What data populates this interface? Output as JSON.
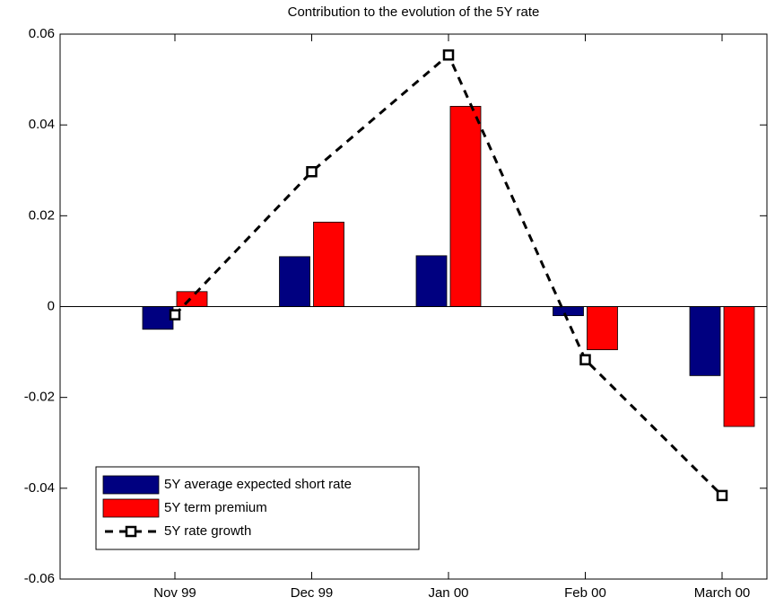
{
  "chart_data": {
    "type": "bar",
    "title": "Contribution to the evolution of the 5Y rate",
    "categories": [
      "Nov 99",
      "Dec 99",
      "Jan 00",
      "Feb 00",
      "March 00"
    ],
    "series": [
      {
        "name": "5Y average expected short rate",
        "color": "#000080",
        "values": [
          -0.005,
          0.011,
          0.0112,
          -0.002,
          -0.0152
        ]
      },
      {
        "name": "5Y term premium",
        "color": "#ff0000",
        "values": [
          0.0033,
          0.0186,
          0.0441,
          -0.0095,
          -0.0264
        ]
      },
      {
        "name": "5Y rate growth",
        "type": "line",
        "color": "#000000",
        "values": [
          -0.0018,
          0.0297,
          0.0554,
          -0.0117,
          -0.0416
        ]
      }
    ],
    "ylim": [
      -0.06,
      0.06
    ],
    "yticks": [
      -0.06,
      -0.04,
      -0.02,
      0,
      0.02,
      0.04,
      0.06
    ],
    "legend": "lower left"
  }
}
